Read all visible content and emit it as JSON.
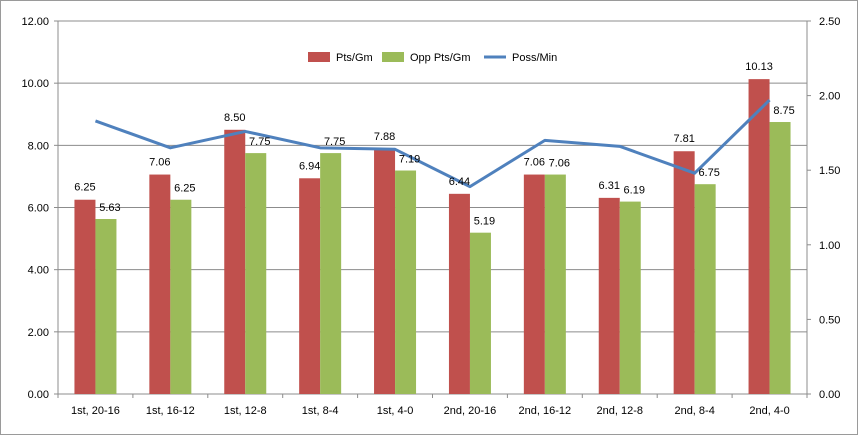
{
  "chart_data": {
    "type": "bar",
    "categories": [
      "1st, 20-16",
      "1st, 16-12",
      "1st, 12-8",
      "1st, 8-4",
      "1st, 4-0",
      "2nd, 20-16",
      "2nd, 16-12",
      "2nd, 12-8",
      "2nd, 8-4",
      "2nd, 4-0"
    ],
    "series": [
      {
        "name": "Pts/Gm",
        "kind": "bar",
        "axis": "left",
        "color": "#c0504d",
        "values": [
          6.25,
          7.06,
          8.5,
          6.94,
          7.88,
          6.44,
          7.06,
          6.31,
          7.81,
          10.13
        ],
        "labels": [
          "6.25",
          "7.06",
          "8.50",
          "6.94",
          "7.88",
          "6.44",
          "7.06",
          "6.31",
          "7.81",
          "10.13"
        ]
      },
      {
        "name": "Opp Pts/Gm",
        "kind": "bar",
        "axis": "left",
        "color": "#9bbb59",
        "values": [
          5.63,
          6.25,
          7.75,
          7.75,
          7.19,
          5.19,
          7.06,
          6.19,
          6.75,
          8.75
        ],
        "labels": [
          "5.63",
          "6.25",
          "7.75",
          "7.75",
          "7.19",
          "5.19",
          "7.06",
          "6.19",
          "6.75",
          "8.75"
        ]
      },
      {
        "name": "Poss/Min",
        "kind": "line",
        "axis": "right",
        "color": "#4f81bd",
        "values": [
          1.83,
          1.65,
          1.76,
          1.65,
          1.64,
          1.39,
          1.7,
          1.66,
          1.48,
          1.97
        ]
      }
    ],
    "ylim": [
      0,
      12
    ],
    "y2lim": [
      0,
      2.5
    ],
    "yticks": [
      "0.00",
      "2.00",
      "4.00",
      "6.00",
      "8.00",
      "10.00",
      "12.00"
    ],
    "y2ticks": [
      "0.00",
      "0.50",
      "1.00",
      "1.50",
      "2.00",
      "2.50"
    ],
    "grid": true,
    "legend_position": "top-center"
  }
}
